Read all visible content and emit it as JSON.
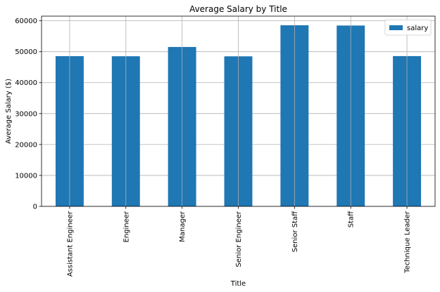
{
  "chart_data": {
    "type": "bar",
    "title": "Average Salary by Title",
    "xlabel": "Title",
    "ylabel": "Average Salary ($)",
    "categories": [
      "Assistant Engineer",
      "Engineer",
      "Manager",
      "Senior Engineer",
      "Senior Staff",
      "Staff",
      "Technique Leader"
    ],
    "series": [
      {
        "name": "salary",
        "values": [
          48560,
          48535,
          51531,
          48507,
          58550,
          58465,
          48583
        ],
        "color": "#1f77b4"
      }
    ],
    "ylim": [
      0,
      61500
    ],
    "yticks": [
      0,
      10000,
      20000,
      30000,
      40000,
      50000,
      60000
    ],
    "grid": true,
    "legend_position": "top-right"
  }
}
